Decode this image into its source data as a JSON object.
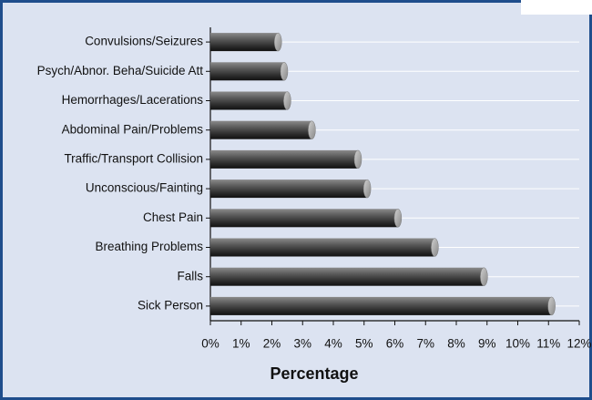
{
  "chart_data": {
    "type": "bar",
    "orientation": "horizontal",
    "x_label": "Percentage",
    "categories": [
      "Convulsions/Seizures",
      "Psych/Abnor. Beha/Suicide Att",
      "Hemorrhages/Lacerations",
      "Abdominal Pain/Problems",
      "Traffic/Transport Collision",
      "Unconscious/Fainting",
      "Chest Pain",
      "Breathing Problems",
      "Falls",
      "Sick Person"
    ],
    "values": [
      2.2,
      2.4,
      2.5,
      3.3,
      4.8,
      5.1,
      6.1,
      7.3,
      8.9,
      11.1
    ],
    "color": "#3a3a3a",
    "xlim": [
      0,
      12
    ],
    "xticks": [
      {
        "value": 0,
        "label": "0%"
      },
      {
        "value": 1,
        "label": "1%"
      },
      {
        "value": 2,
        "label": "2%"
      },
      {
        "value": 3,
        "label": "3%"
      },
      {
        "value": 4,
        "label": "4%"
      },
      {
        "value": 5,
        "label": "5%"
      },
      {
        "value": 6,
        "label": "6%"
      },
      {
        "value": 7,
        "label": "7%"
      },
      {
        "value": 8,
        "label": "8%"
      },
      {
        "value": 9,
        "label": "9%"
      },
      {
        "value": 10,
        "label": "10%"
      },
      {
        "value": 11,
        "label": "11%"
      },
      {
        "value": 12,
        "label": "12%"
      }
    ],
    "grid": true
  }
}
